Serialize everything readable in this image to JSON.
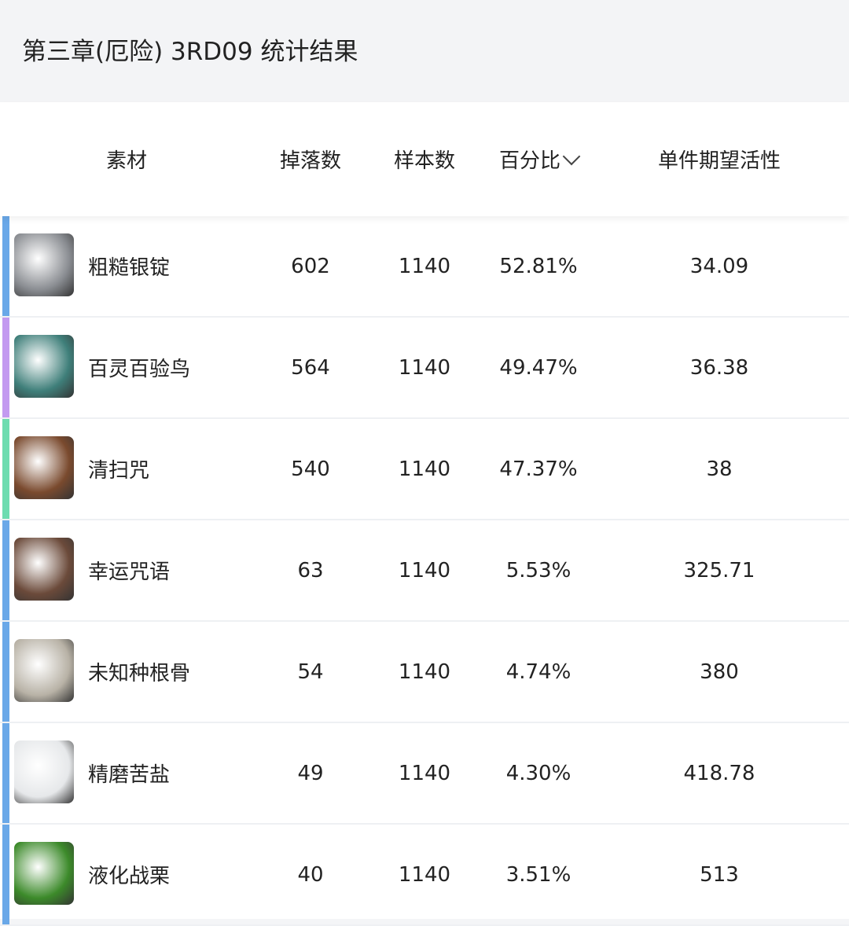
{
  "title": "第三章(厄险) 3RD09 统计结果",
  "columns": [
    "素材",
    "掉落数",
    "样本数",
    "百分比",
    "单件期望活性"
  ],
  "sort": {
    "column": "百分比",
    "icon": "chevron-down-icon"
  },
  "rows": [
    {
      "name": "粗糙银锭",
      "drops": "602",
      "samples": "1140",
      "percent": "52.81%",
      "expected": "34.09",
      "color": "#6aa8e8",
      "icon": "silver-ingot-icon",
      "icon_color": "#8a8d92"
    },
    {
      "name": "百灵百验鸟",
      "drops": "564",
      "samples": "1140",
      "percent": "49.47%",
      "expected": "36.38",
      "color": "#c39af0",
      "icon": "bird-icon",
      "icon_color": "#3f7f7a"
    },
    {
      "name": "清扫咒",
      "drops": "540",
      "samples": "1140",
      "percent": "47.37%",
      "expected": "38",
      "color": "#6edcb0",
      "icon": "broom-icon",
      "icon_color": "#7a4a2e"
    },
    {
      "name": "幸运咒语",
      "drops": "63",
      "samples": "1140",
      "percent": "5.53%",
      "expected": "325.71",
      "color": "#6aa8e8",
      "icon": "spell-card-icon",
      "icon_color": "#6b4a3a"
    },
    {
      "name": "未知种根骨",
      "drops": "54",
      "samples": "1140",
      "percent": "4.74%",
      "expected": "380",
      "color": "#6aa8e8",
      "icon": "bones-icon",
      "icon_color": "#b8b2a6"
    },
    {
      "name": "精磨苦盐",
      "drops": "49",
      "samples": "1140",
      "percent": "4.30%",
      "expected": "418.78",
      "color": "#6aa8e8",
      "icon": "salt-icon",
      "icon_color": "#e6e8ea"
    },
    {
      "name": "液化战栗",
      "drops": "40",
      "samples": "1140",
      "percent": "3.51%",
      "expected": "513",
      "color": "#6aa8e8",
      "icon": "green-jar-icon",
      "icon_color": "#3c8a2a"
    }
  ]
}
